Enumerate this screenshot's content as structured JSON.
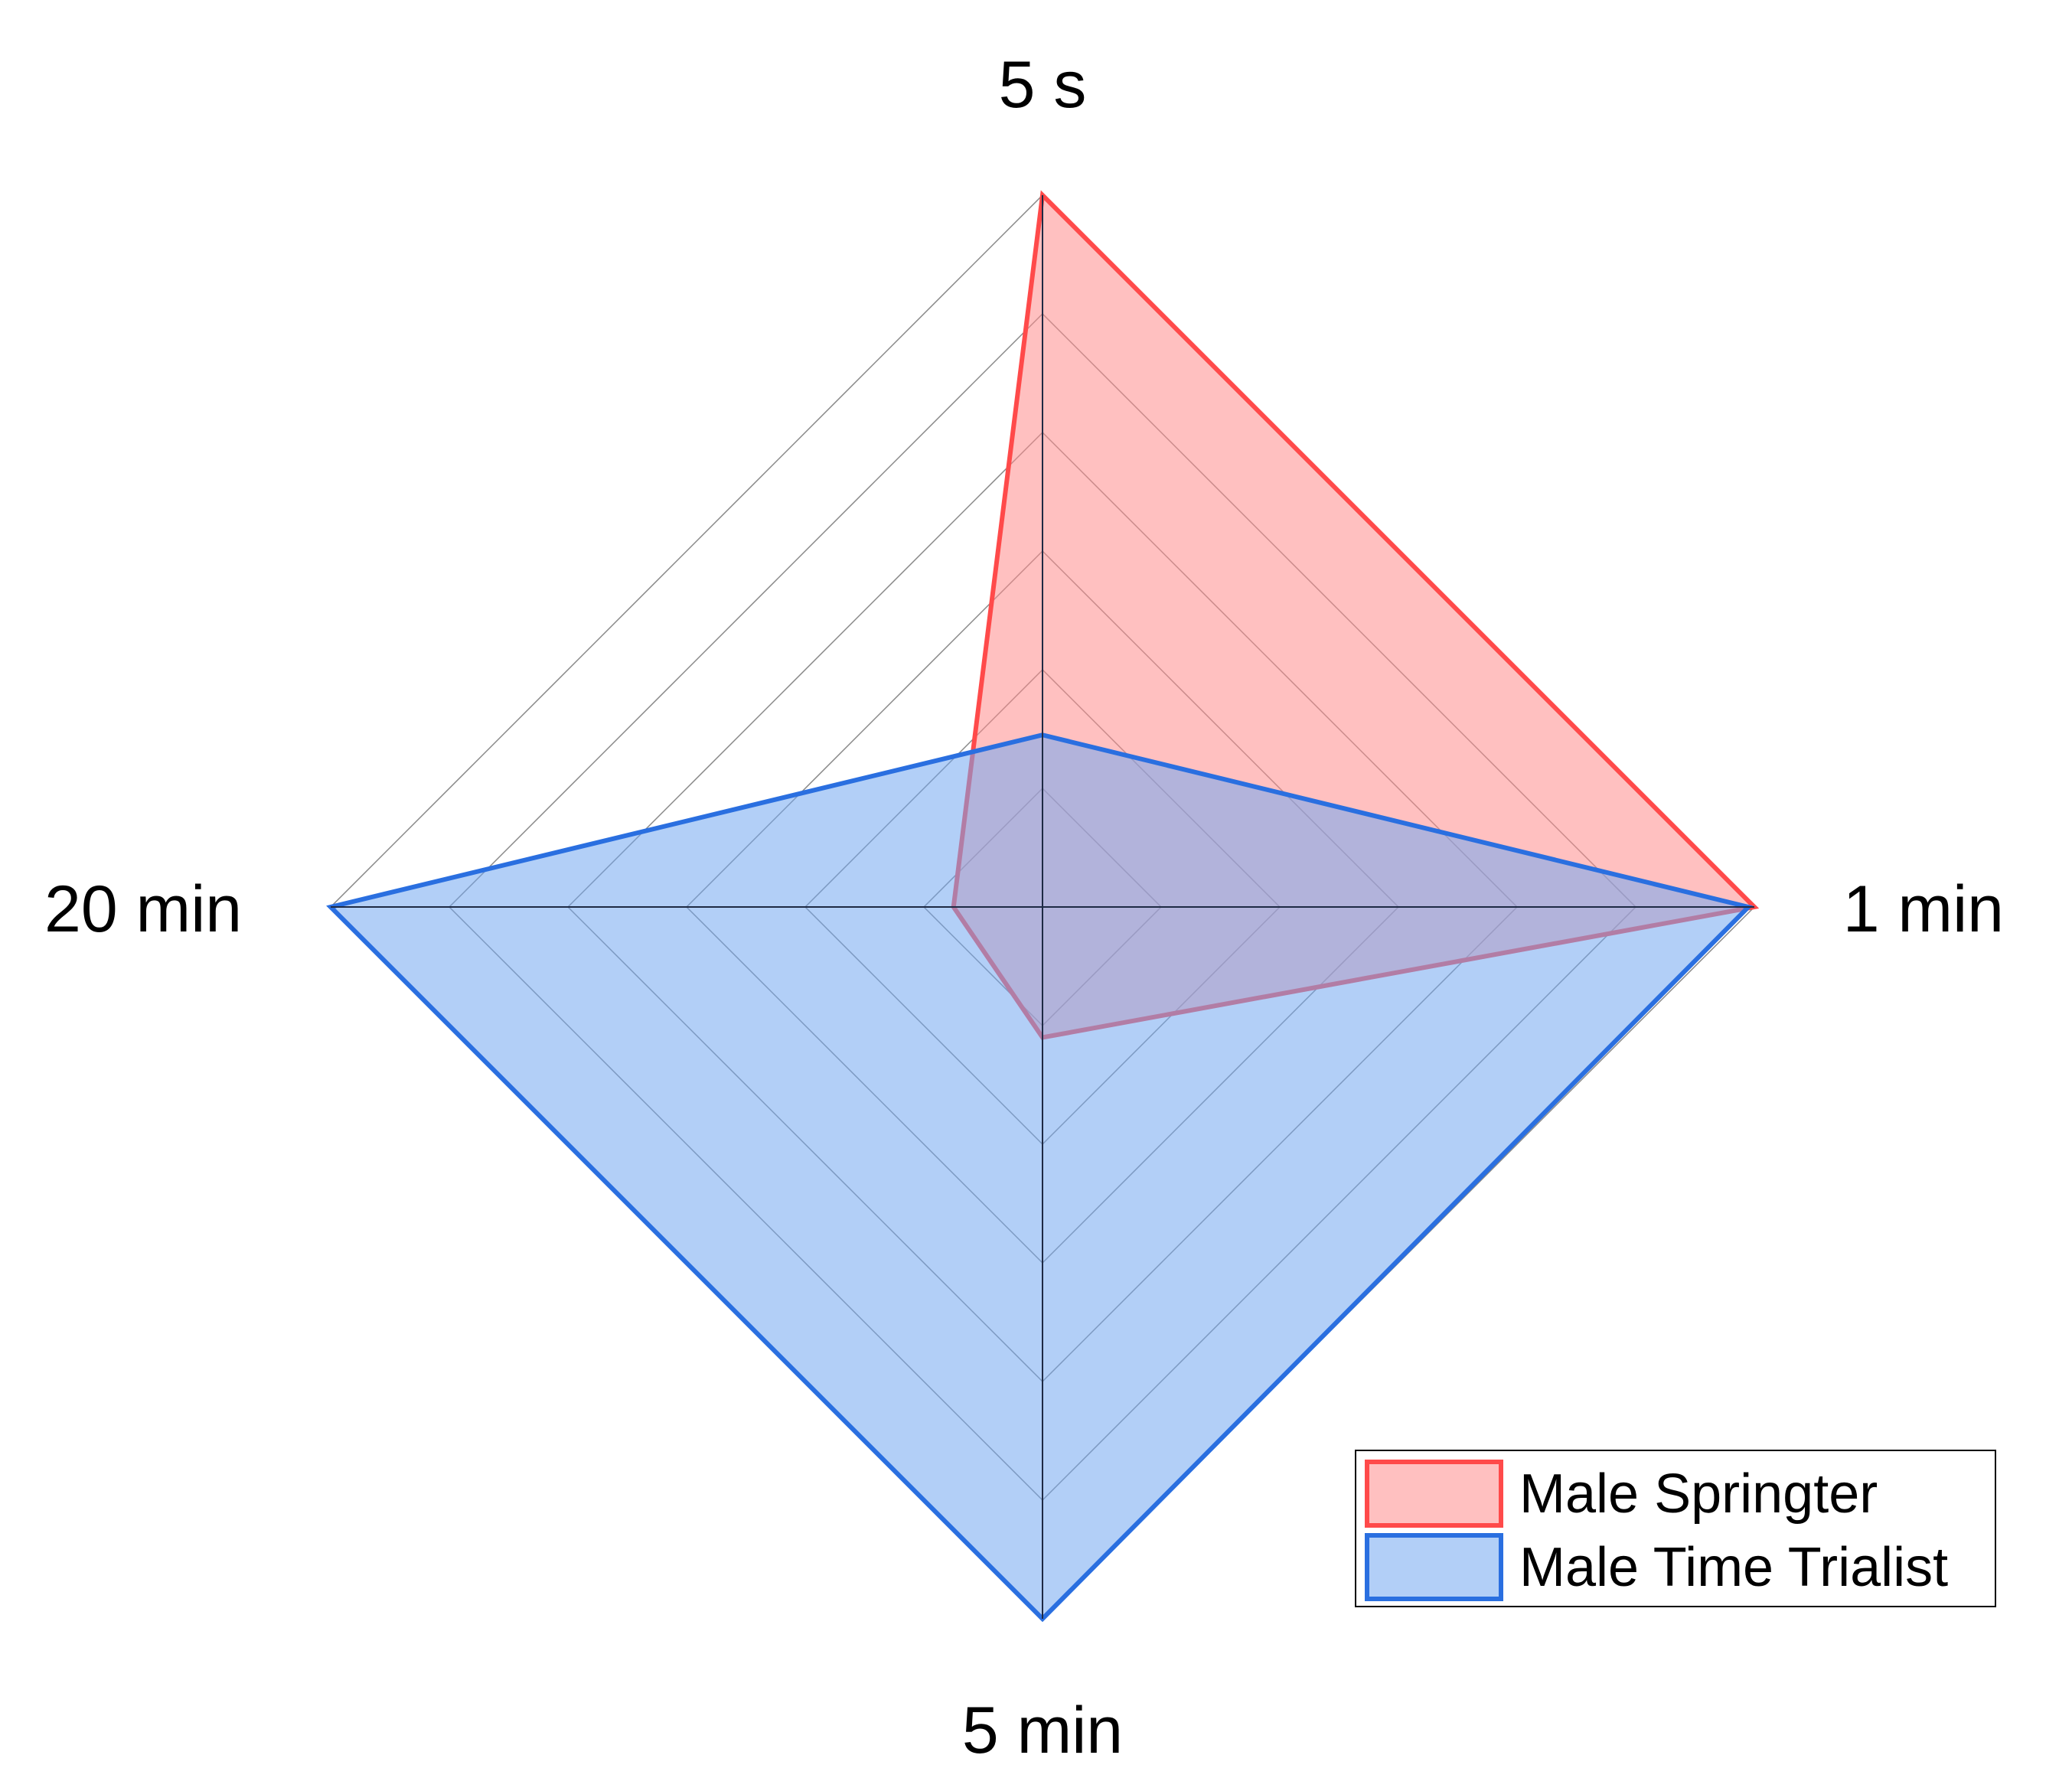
{
  "chart_data": {
    "type": "radar",
    "title": "",
    "axes": [
      "5 s",
      "1 min",
      "5 min",
      "20 min"
    ],
    "range": [
      0,
      6
    ],
    "grid_levels": 6,
    "grid": true,
    "legend_position": "bottom-right",
    "series": [
      {
        "name": "Male Springter",
        "values": [
          6,
          6,
          1.1,
          0.75
        ],
        "stroke": "#ff4a4a",
        "fill": "#ff8c8c"
      },
      {
        "name": "Male Time Trialist",
        "values": [
          1.45,
          5.95,
          6,
          6
        ],
        "stroke": "#2a6fe0",
        "fill": "#73a8f0"
      }
    ]
  }
}
